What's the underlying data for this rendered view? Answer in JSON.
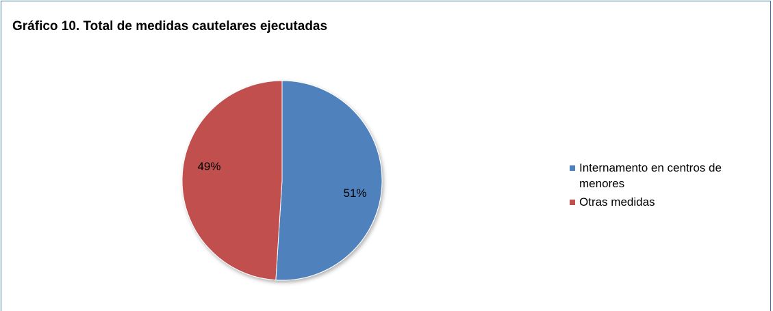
{
  "chart_data": {
    "type": "pie",
    "title": "Gráfico 10. Total de medidas cautelares ejecutadas",
    "categories": [
      "Internamento en centros de menores",
      "Otras medidas"
    ],
    "values": [
      51,
      49
    ],
    "value_labels": [
      "51%",
      "49%"
    ],
    "colors": [
      "#4f81bd",
      "#c0504d"
    ],
    "legend": "right"
  }
}
